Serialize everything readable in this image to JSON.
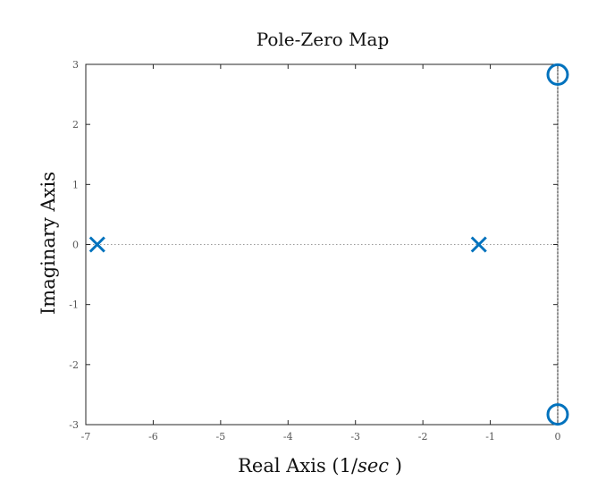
{
  "chart_data": {
    "type": "scatter",
    "title": "Pole-Zero Map",
    "xlabel": "Real Axis (1/",
    "xlabel_unit": "sec",
    "xlabel_close": " )",
    "ylabel": "Imaginary Axis",
    "xlim": [
      -7,
      0
    ],
    "ylim": [
      -3,
      3
    ],
    "xticks": [
      -7,
      -6,
      -5,
      -4,
      -3,
      -2,
      -1,
      0
    ],
    "yticks": [
      -3,
      -2,
      -1,
      0,
      1,
      2,
      3
    ],
    "xtick_labels": [
      "-7",
      "-6",
      "-5",
      "-4",
      "-3",
      "-2",
      "-1",
      "0"
    ],
    "ytick_labels": [
      "-3",
      "-2",
      "-1",
      "0",
      "1",
      "2",
      "3"
    ],
    "grid": false,
    "reference_lines": {
      "real_axis_zero": true,
      "imag_axis_zero": true
    },
    "series": [
      {
        "marker": "x",
        "color": "#0072bd",
        "points": [
          {
            "x": -6.83,
            "y": 0
          },
          {
            "x": -1.17,
            "y": 0
          }
        ]
      },
      {
        "marker": "o",
        "color": "#0072bd",
        "points": [
          {
            "x": 0,
            "y": 2.83
          },
          {
            "x": 0,
            "y": -2.83
          }
        ]
      }
    ]
  }
}
